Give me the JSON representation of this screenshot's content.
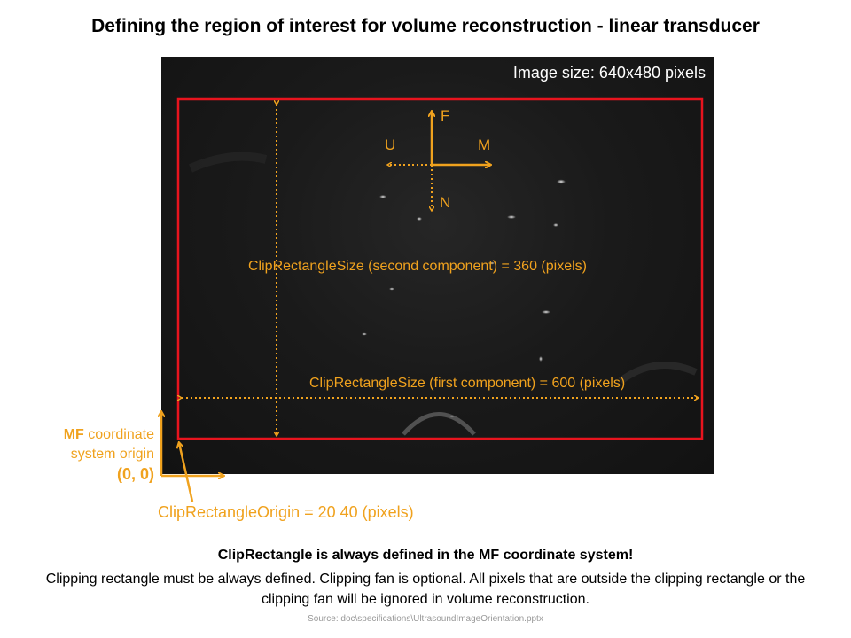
{
  "title": "Defining the region of interest for volume reconstruction - linear transducer",
  "image_size_label": "Image size: 640x480 pixels",
  "axes": {
    "f": "F",
    "u": "U",
    "m": "M",
    "n": "N"
  },
  "clip_size_second": "ClipRectangleSize (second component) = 360 (pixels)",
  "clip_size_first": "ClipRectangleSize (first component) = 600 (pixels)",
  "mf_origin": {
    "mf": "MF",
    "line1_rest": " coordinate",
    "line2": "system origin",
    "coords": "(0, 0)"
  },
  "clip_origin": "ClipRectangleOrigin = 20  40 (pixels)",
  "bottom_bold": "ClipRectangle is always defined in the MF coordinate system!",
  "bottom_text": "Clipping rectangle must be always defined.  Clipping fan is optional. All pixels that are outside the clipping rectangle or the clipping fan will be ignored in volume reconstruction.",
  "source": "Source: doc\\specifications\\UltrasoundImageOrientation.pptx",
  "colors": {
    "orange": "#f0a21e",
    "red": "#e8141e",
    "image_bg": "#1a1a1a"
  }
}
